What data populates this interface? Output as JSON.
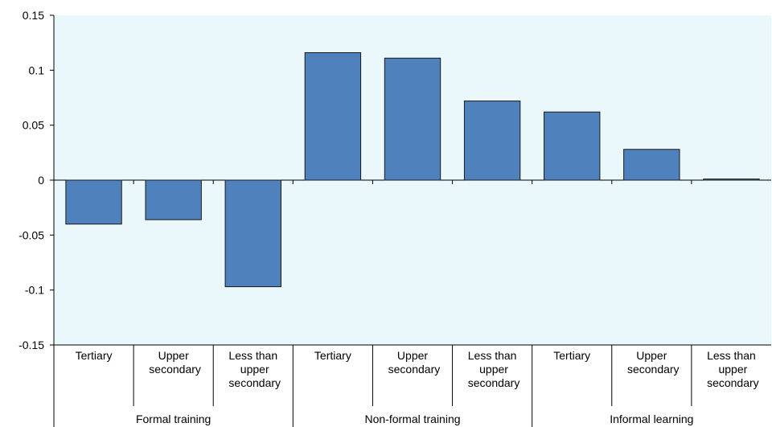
{
  "chart_data": {
    "type": "bar",
    "color": "#4f81bd",
    "ylim": [
      -0.15,
      0.15
    ],
    "yticks": [
      -0.15,
      -0.1,
      -0.05,
      0,
      0.05,
      0.1,
      0.15
    ],
    "groups": [
      {
        "name": "Formal training",
        "categories": [
          "Tertiary",
          "Upper secondary",
          "Less than upper secondary"
        ],
        "values": [
          -0.04,
          -0.036,
          -0.097
        ]
      },
      {
        "name": "Non-formal training",
        "categories": [
          "Tertiary",
          "Upper secondary",
          "Less than upper secondary"
        ],
        "values": [
          0.116,
          0.111,
          0.072
        ]
      },
      {
        "name": "Informal learning",
        "categories": [
          "Tertiary",
          "Upper secondary",
          "Less than upper secondary"
        ],
        "values": [
          0.062,
          0.028,
          0.001
        ]
      }
    ]
  }
}
